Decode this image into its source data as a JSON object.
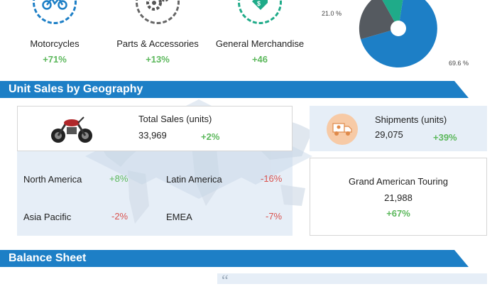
{
  "categories": [
    {
      "label": "Motorcycles",
      "change": "+71%",
      "icon": "motorcycle-icon"
    },
    {
      "label": "Parts & Accessories",
      "change": "+13%",
      "icon": "gears-icon"
    },
    {
      "label": "General Merchandise",
      "change": "+46",
      "icon": "price-tag-icon"
    }
  ],
  "pie": {
    "label_small": "21.0 %",
    "label_large": "69.6 %"
  },
  "geo_section": {
    "title": "Unit Sales by Geography"
  },
  "total_sales": {
    "label": "Total Sales (units)",
    "value": "33,969",
    "change": "+2%"
  },
  "regions": [
    {
      "name": "North America",
      "change": "+8%"
    },
    {
      "name": "Latin America",
      "change": "-16%"
    },
    {
      "name": "Asia Pacific",
      "change": "-2%"
    },
    {
      "name": "EMEA",
      "change": "-7%"
    }
  ],
  "shipments": {
    "label": "Shipments (units)",
    "value": "29,075",
    "change": "+39%"
  },
  "grand_touring": {
    "label": "Grand American Touring",
    "value": "21,988",
    "change": "+67%"
  },
  "balance_section": {
    "title": "Balance Sheet"
  },
  "quote_mark": "“",
  "colors": {
    "blue": "#1d7fc6",
    "green": "#5cb85c",
    "red": "#d9534f",
    "gray": "#666666",
    "teal": "#1fab89"
  }
}
